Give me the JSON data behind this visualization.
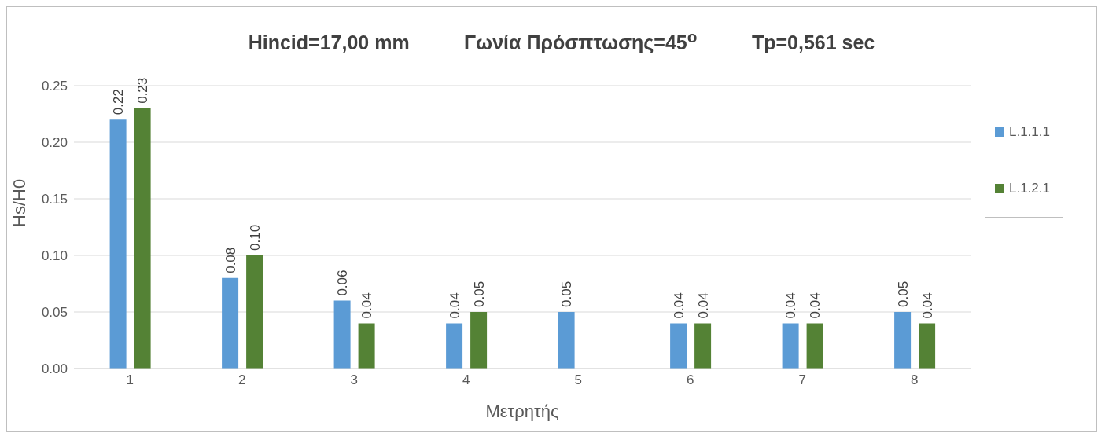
{
  "chart_data": {
    "type": "bar",
    "title": "Hincid=17,00 mm          Γωνία Πρόσπτωσης=45$^{o}$          Tp=0,561 sec",
    "xlabel": "Μετρητής",
    "ylabel": "Hs/H0",
    "categories": [
      "1",
      "2",
      "3",
      "4",
      "5",
      "6",
      "7",
      "8"
    ],
    "series": [
      {
        "name": "L.1.1.1",
        "color": "#5b9bd5",
        "values": [
          0.22,
          0.08,
          0.06,
          0.04,
          0.05,
          0.04,
          0.04,
          0.05
        ],
        "value_labels": [
          "0.22",
          "0.08",
          "0.06",
          "0.04",
          "0.05",
          "0.04",
          "0.04",
          "0.05"
        ]
      },
      {
        "name": "L.1.2.1",
        "color": "#548235",
        "values": [
          0.23,
          0.1,
          0.04,
          0.05,
          null,
          0.04,
          0.04,
          0.04
        ],
        "value_labels": [
          "0.23",
          "0.10",
          "0.04",
          "0.05",
          null,
          "0.04",
          "0.04",
          "0.04"
        ]
      }
    ],
    "ylim": [
      0,
      0.25
    ],
    "yticks": [
      {
        "value": 0,
        "label": "0.00"
      },
      {
        "value": 0.05,
        "label": "0.05"
      },
      {
        "value": 0.1,
        "label": "0.10"
      },
      {
        "value": 0.15,
        "label": "0.15"
      },
      {
        "value": 0.2,
        "label": "0.20"
      },
      {
        "value": 0.25,
        "label": "0.25"
      }
    ],
    "grid": "y",
    "legend": "right"
  }
}
